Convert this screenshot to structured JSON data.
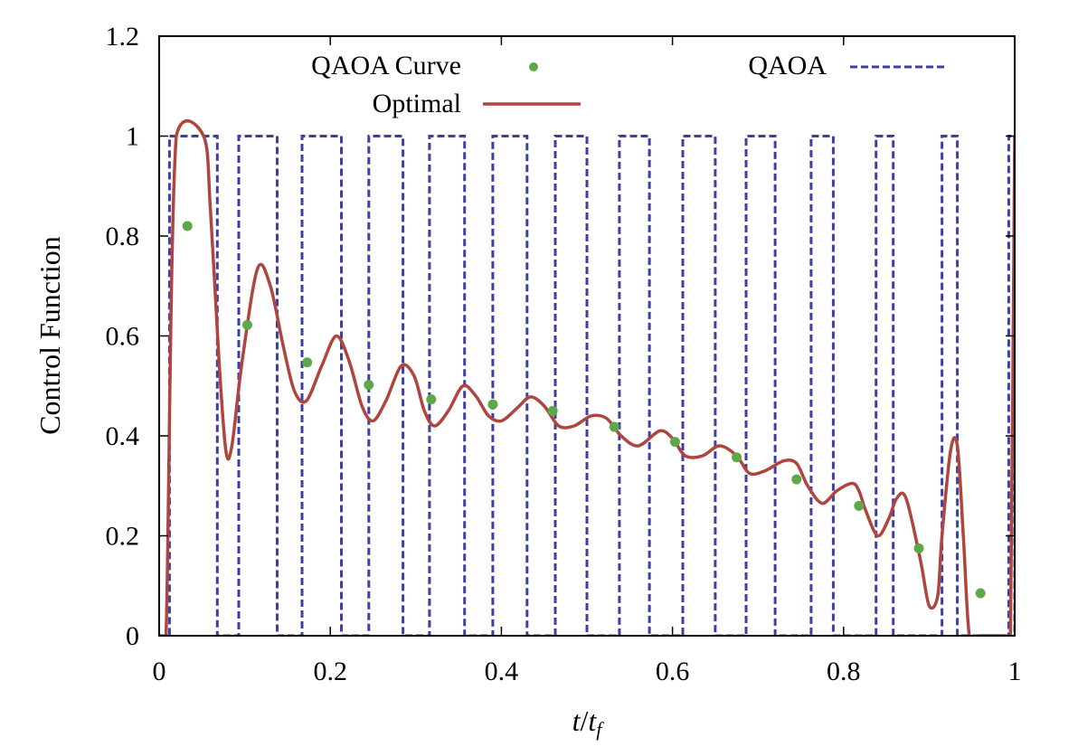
{
  "chart_data": {
    "type": "line",
    "xlabel": "t/t_f",
    "ylabel": "Control Function",
    "xlim": [
      0,
      1
    ],
    "ylim": [
      0,
      1.2
    ],
    "xticks": [
      "0",
      "0.2",
      "0.4",
      "0.6",
      "0.8",
      "1"
    ],
    "xtick_values": [
      0,
      0.2,
      0.4,
      0.6,
      0.8,
      1
    ],
    "yticks": [
      "0",
      "0.2",
      "0.4",
      "0.6",
      "0.8",
      "1",
      "1.2"
    ],
    "ytick_values": [
      0,
      0.2,
      0.4,
      0.6,
      0.8,
      1,
      1.2
    ],
    "grid": false,
    "legend_position": "top",
    "colors": {
      "qaoa_curve": "#5fa84a",
      "qaoa": "#3c3fa6",
      "optimal": "#b0443e"
    },
    "series": [
      {
        "name": "QAOA Curve",
        "style": "points",
        "x": [
          0.033,
          0.103,
          0.173,
          0.245,
          0.318,
          0.39,
          0.46,
          0.532,
          0.603,
          0.675,
          0.745,
          0.818,
          0.888,
          0.96
        ],
        "y": [
          0.82,
          0.622,
          0.547,
          0.502,
          0.473,
          0.463,
          0.45,
          0.418,
          0.388,
          0.357,
          0.313,
          0.26,
          0.175,
          0.085
        ]
      },
      {
        "name": "QAOA",
        "style": "dashed-step",
        "high_intervals": [
          [
            0.012,
            0.068
          ],
          [
            0.093,
            0.138
          ],
          [
            0.167,
            0.213
          ],
          [
            0.245,
            0.285
          ],
          [
            0.316,
            0.357
          ],
          [
            0.39,
            0.43
          ],
          [
            0.463,
            0.5
          ],
          [
            0.538,
            0.573
          ],
          [
            0.612,
            0.65
          ],
          [
            0.686,
            0.72
          ],
          [
            0.762,
            0.788
          ],
          [
            0.838,
            0.858
          ],
          [
            0.915,
            0.933
          ],
          [
            0.993,
            1.0
          ]
        ]
      },
      {
        "name": "Optimal",
        "style": "solid",
        "x": [
          0,
          0.008,
          0.02,
          0.052,
          0.06,
          0.07,
          0.078,
          0.085,
          0.097,
          0.115,
          0.13,
          0.145,
          0.158,
          0.172,
          0.19,
          0.207,
          0.222,
          0.237,
          0.25,
          0.265,
          0.283,
          0.298,
          0.31,
          0.322,
          0.338,
          0.355,
          0.37,
          0.385,
          0.4,
          0.418,
          0.434,
          0.45,
          0.467,
          0.485,
          0.505,
          0.523,
          0.54,
          0.56,
          0.585,
          0.6,
          0.615,
          0.635,
          0.655,
          0.675,
          0.69,
          0.708,
          0.73,
          0.745,
          0.758,
          0.775,
          0.792,
          0.81,
          0.818,
          0.826,
          0.84,
          0.853,
          0.862,
          0.873,
          0.89,
          0.9,
          0.91,
          0.915,
          0.925,
          0.933,
          0.94,
          0.947,
          0.958,
          0.99,
          0.995,
          1.0
        ],
        "y": [
          0,
          0.0,
          1.0,
          1.0,
          0.85,
          0.55,
          0.37,
          0.38,
          0.55,
          0.735,
          0.7,
          0.58,
          0.49,
          0.47,
          0.54,
          0.6,
          0.55,
          0.46,
          0.43,
          0.47,
          0.54,
          0.52,
          0.45,
          0.42,
          0.45,
          0.5,
          0.48,
          0.44,
          0.43,
          0.455,
          0.478,
          0.46,
          0.42,
          0.42,
          0.44,
          0.435,
          0.4,
          0.38,
          0.41,
          0.395,
          0.36,
          0.36,
          0.38,
          0.36,
          0.325,
          0.33,
          0.35,
          0.345,
          0.3,
          0.265,
          0.29,
          0.305,
          0.29,
          0.25,
          0.2,
          0.235,
          0.275,
          0.275,
          0.15,
          0.06,
          0.08,
          0.2,
          0.37,
          0.38,
          0.2,
          0.0,
          0.0,
          0.0,
          0.0,
          1.0
        ]
      }
    ]
  }
}
